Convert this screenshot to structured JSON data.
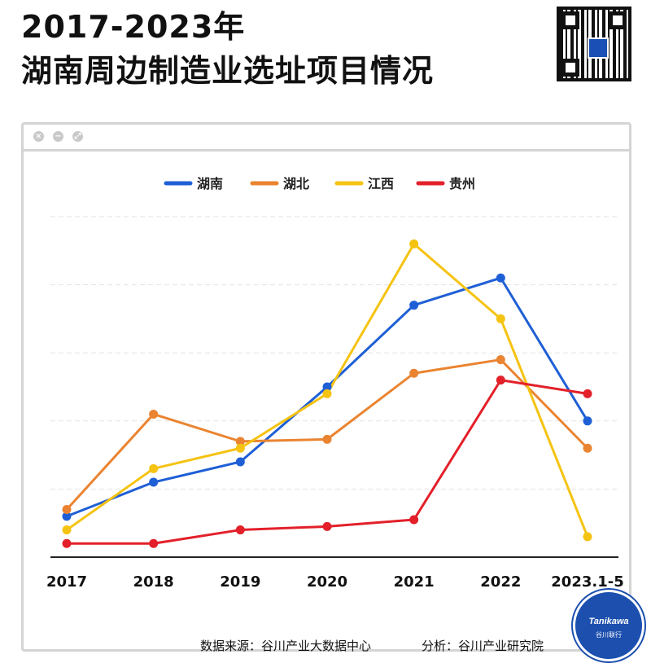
{
  "header": {
    "title_line1": "2017-2023年",
    "title_line2": "湖南周边制造业选址项目情况"
  },
  "window_buttons": {
    "close": "×",
    "minimize": "−",
    "maximize": "⤢"
  },
  "footer": {
    "source": "数据来源：谷川产业大数据中心",
    "analysis": "分析：谷川产业研究院"
  },
  "badge": {
    "name": "Tanikawa",
    "sub": "谷川联行"
  },
  "chart_data": {
    "type": "line",
    "categories": [
      "2017",
      "2018",
      "2019",
      "2020",
      "2021",
      "2022",
      "2023.1-5"
    ],
    "series": [
      {
        "name": "湖南",
        "color": "#1f5fd6",
        "values": [
          6,
          11,
          14,
          25,
          37,
          41,
          20
        ]
      },
      {
        "name": "湖北",
        "color": "#ea8431",
        "values": [
          7,
          21,
          17,
          17.3,
          27,
          29,
          16
        ]
      },
      {
        "name": "江西",
        "color": "#f5c312",
        "values": [
          4,
          13,
          16,
          24,
          46,
          35,
          3
        ]
      },
      {
        "name": "贵州",
        "color": "#e3202a",
        "values": [
          2,
          2,
          4,
          4.5,
          5.5,
          26,
          24
        ]
      }
    ],
    "ylim": [
      0,
      50
    ],
    "grid": true,
    "legend": "top"
  }
}
